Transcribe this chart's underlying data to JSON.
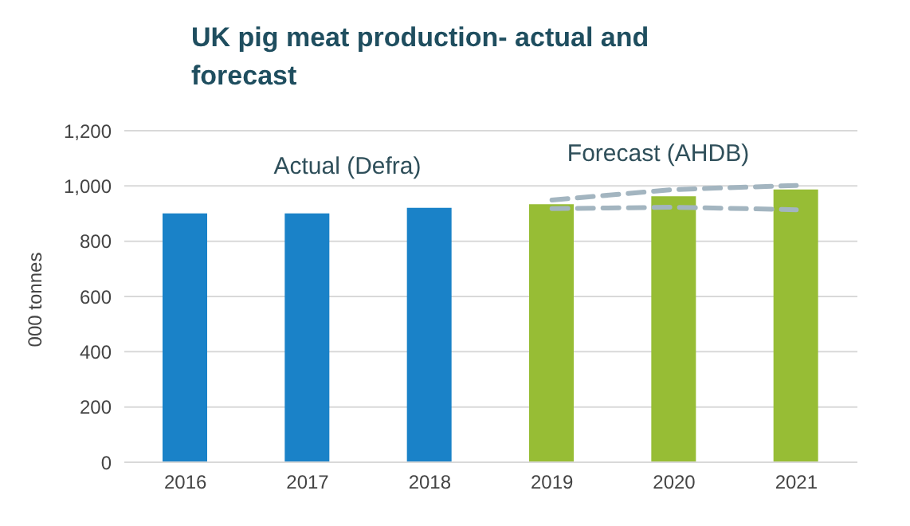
{
  "chart_data": {
    "type": "bar",
    "title": "UK pig meat production- actual and forecast",
    "ylabel": "000 tonnes",
    "categories": [
      "2016",
      "2017",
      "2018",
      "2019",
      "2020",
      "2021"
    ],
    "series": [
      {
        "values": [
          901,
          901,
          921,
          934,
          963,
          987
        ],
        "colors": [
          "#1a82c8",
          "#1a82c8",
          "#1a82c8",
          "#97bd35",
          "#97bd35",
          "#97bd35"
        ]
      },
      {
        "type": "line",
        "values": [
          null,
          null,
          null,
          949,
          987,
          1002
        ],
        "color": "#a3b5c0",
        "line_style": "dashed"
      },
      {
        "type": "line",
        "values": [
          null,
          null,
          null,
          918,
          923,
          914
        ],
        "color": "#a3b5c0",
        "line_style": "dashed"
      }
    ],
    "annotations": [
      "Actual (Defra)",
      "Forecast (AHDB)"
    ],
    "ylim": [
      0,
      1200
    ],
    "yticks": [
      0,
      200,
      400,
      600,
      800,
      {
        "value": 1000,
        "label": "1,000"
      },
      {
        "value": 1200,
        "label": "1,200"
      }
    ],
    "grid": "y",
    "marker": "none"
  }
}
